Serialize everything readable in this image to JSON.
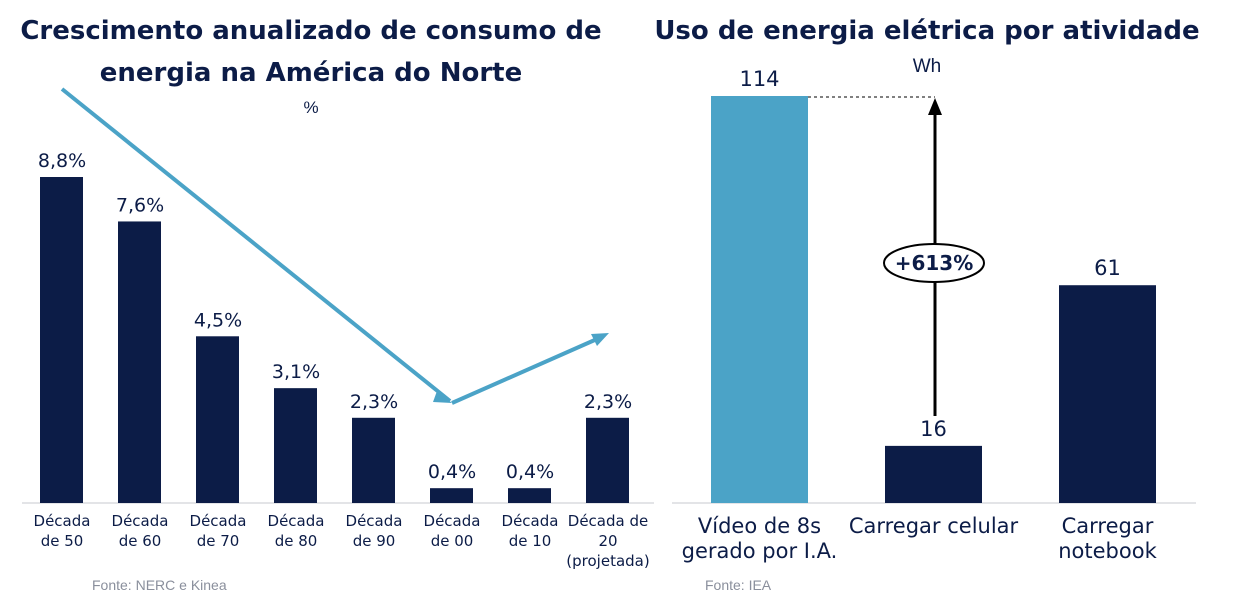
{
  "chart_data": [
    {
      "type": "bar",
      "title_lines": [
        "Crescimento anualizado de consumo de",
        "energia na América do Norte"
      ],
      "unit": "%",
      "categories": [
        [
          "Década",
          "de 50"
        ],
        [
          "Década",
          "de 60"
        ],
        [
          "Década",
          "de 70"
        ],
        [
          "Década",
          "de 80"
        ],
        [
          "Década",
          "de 90"
        ],
        [
          "Década",
          "de 00"
        ],
        [
          "Década",
          "de 10"
        ],
        [
          "Década de",
          "20",
          "(projetada)"
        ]
      ],
      "values": [
        8.8,
        7.6,
        4.5,
        3.1,
        2.3,
        0.4,
        0.4,
        2.3
      ],
      "value_labels": [
        "8,8%",
        "7,6%",
        "4,5%",
        "3,1%",
        "2,3%",
        "0,4%",
        "0,4%",
        "2,3%"
      ],
      "bar_color": "#0c1c47",
      "trend_arrow_color": "#4ba3c7",
      "source": "Fonte: NERC e Kinea",
      "grid": false,
      "ylim": [
        0,
        10
      ]
    },
    {
      "type": "bar",
      "title_lines": [
        "Uso de energia elétrica por atividade"
      ],
      "unit": "Wh",
      "categories": [
        [
          "Vídeo de 8s",
          "gerado por I.A."
        ],
        [
          "Carregar celular"
        ],
        [
          "Carregar",
          "notebook"
        ]
      ],
      "values": [
        114,
        16,
        61
      ],
      "value_labels": [
        "114",
        "16",
        "61"
      ],
      "bar_colors": [
        "#4ba3c7",
        "#0c1c47",
        "#0c1c47"
      ],
      "annotation": "+613%",
      "source": "Fonte: IEA",
      "grid": false,
      "ylim": [
        0,
        120
      ]
    }
  ]
}
